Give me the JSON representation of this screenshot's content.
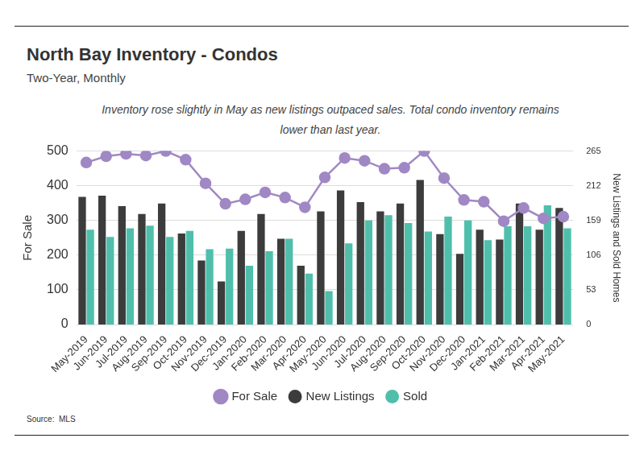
{
  "chart_data": {
    "type": "bar",
    "title": "North Bay Inventory - Condos",
    "subtitle": "Two-Year, Monthly",
    "annotation": "Inventory rose slightly in May as new listings outpaced sales. Total condo inventory remains lower than last year.",
    "source": "Source:  MLS",
    "y_label": "For Sale",
    "y2_label": "New Listings and Sold Homes",
    "categories": [
      "May-2019",
      "Jun-2019",
      "Jul-2019",
      "Aug-2019",
      "Sep-2019",
      "Oct-2019",
      "Nov-2019",
      "Dec-2019",
      "Jan-2020",
      "Feb-2020",
      "Mar-2020",
      "Apr-2020",
      "May-2020",
      "Jun-2020",
      "Jul-2020",
      "Aug-2020",
      "Sep-2020",
      "Oct-2020",
      "Nov-2020",
      "Dec-2020",
      "Jan-2021",
      "Feb-2021",
      "Mar-2021",
      "Apr-2021",
      "May-2021"
    ],
    "series": [
      {
        "name": "For Sale",
        "type": "line",
        "marker": "circle",
        "color": "#a088c4",
        "axis": "y",
        "values": [
          467,
          485,
          492,
          487,
          500,
          475,
          407,
          348,
          361,
          381,
          366,
          338,
          424,
          480,
          472,
          449,
          452,
          500,
          422,
          359,
          354,
          298,
          336,
          306,
          311
        ]
      },
      {
        "name": "New Listings",
        "type": "bar",
        "color": "#3c3c3c",
        "axis": "y2",
        "values": [
          195,
          197,
          181,
          169,
          185,
          139,
          98,
          66,
          143,
          169,
          131,
          90,
          173,
          205,
          187,
          173,
          185,
          221,
          138,
          108,
          145,
          130,
          185,
          145,
          178
        ]
      },
      {
        "name": "Sold",
        "type": "bar",
        "color": "#4fbfab",
        "axis": "y2",
        "values": [
          145,
          134,
          147,
          151,
          134,
          143,
          115,
          116,
          90,
          112,
          131,
          78,
          51,
          124,
          159,
          167,
          155,
          142,
          165,
          159,
          129,
          150,
          150,
          182,
          147
        ]
      }
    ],
    "ylim": [
      0,
      500
    ],
    "yticks": [
      0,
      100,
      200,
      300,
      400,
      500
    ],
    "y2lim": [
      0,
      265
    ],
    "y2ticks": [
      0,
      53,
      106,
      159,
      212,
      265
    ],
    "grid": true,
    "legend": "bottom"
  }
}
